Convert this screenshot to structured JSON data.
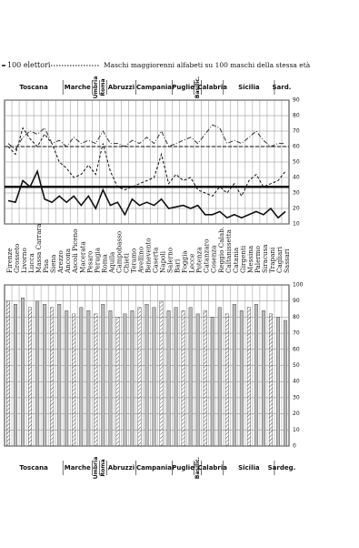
{
  "region_labels_top": [
    "Toscana",
    "Marche",
    "Umbria",
    "Roma",
    "Abruzzi",
    "Campania",
    "Puglie",
    "Basilic.",
    "Calabria",
    "Sicilia",
    "Sard."
  ],
  "region_labels_bottom": [
    "Toscana",
    "Marche",
    "Umbria",
    "Roma",
    "Abruzzi",
    "Campania",
    "Puglie",
    "Basilic.",
    "Calabria",
    "Sicilia",
    "Sardeg."
  ],
  "chart_data": [
    {
      "type": "line",
      "categories": [
        "Firenze",
        "Grosseto",
        "Livorno",
        "Lucca",
        "Massa Carrara",
        "Pisa",
        "Siena",
        "Arezzo",
        "Ancona",
        "Ascoli Piceno",
        "Macerata",
        "Pesaro",
        "Perugia",
        "Roma",
        "Aquila",
        "Campobasso",
        "Chieti",
        "Teramo",
        "Avellino",
        "Benevento",
        "Caserta",
        "Napoli",
        "Salerno",
        "Bari",
        "Foggia",
        "Lecce",
        "Potenza",
        "Catanzaro",
        "Cosenza",
        "Reggio Calab.",
        "Caltanissetta",
        "Catania",
        "Girgenti",
        "Messina",
        "Palermo",
        "Siracusa",
        "Trapani",
        "Cagliari",
        "Sassari"
      ],
      "series": [
        {
          "name": "100 elettori",
          "color": "#111",
          "style": "solid",
          "values": [
            25,
            24,
            38,
            34,
            44,
            26,
            24,
            28,
            24,
            28,
            22,
            28,
            20,
            32,
            22,
            24,
            16,
            26,
            22,
            24,
            22,
            26,
            20,
            21,
            22,
            20,
            22,
            16,
            16,
            18,
            14,
            16,
            14,
            16,
            18,
            16,
            20,
            14,
            18
          ]
        },
        {
          "name": "Maschi maggiorenni alfabeti su 100 maschi della stessa età",
          "color": "#111",
          "style": "dashed",
          "values": [
            60,
            55,
            72,
            65,
            60,
            68,
            62,
            50,
            46,
            40,
            42,
            48,
            42,
            62,
            44,
            34,
            32,
            34,
            36,
            38,
            40,
            55,
            36,
            42,
            38,
            40,
            32,
            30,
            28,
            34,
            30,
            36,
            28,
            38,
            42,
            34,
            36,
            38,
            44
          ]
        },
        {
          "color": "#333",
          "style": "dashdot",
          "values": [
            62,
            58,
            66,
            70,
            68,
            72,
            62,
            64,
            60,
            66,
            62,
            64,
            62,
            70,
            62,
            62,
            60,
            64,
            62,
            66,
            62,
            70,
            60,
            62,
            64,
            66,
            62,
            68,
            74,
            72,
            62,
            64,
            62,
            66,
            70,
            64,
            60,
            62,
            62
          ]
        }
      ],
      "hlines": [
        60,
        34
      ],
      "ylim": [
        10,
        90
      ],
      "yticks": [
        10,
        20,
        30,
        40,
        50,
        60,
        70,
        80,
        90
      ]
    },
    {
      "type": "bar",
      "values": [
        90,
        88,
        92,
        86,
        90,
        88,
        86,
        88,
        84,
        82,
        86,
        84,
        82,
        88,
        84,
        80,
        82,
        84,
        86,
        88,
        86,
        90,
        84,
        86,
        84,
        86,
        82,
        84,
        80,
        86,
        82,
        88,
        84,
        86,
        88,
        84,
        82,
        80,
        78
      ],
      "color": "#bbb",
      "ylim": [
        0,
        100
      ],
      "yticks": [
        0,
        10,
        20,
        30,
        40,
        50,
        60,
        70,
        80,
        90,
        100
      ]
    }
  ]
}
